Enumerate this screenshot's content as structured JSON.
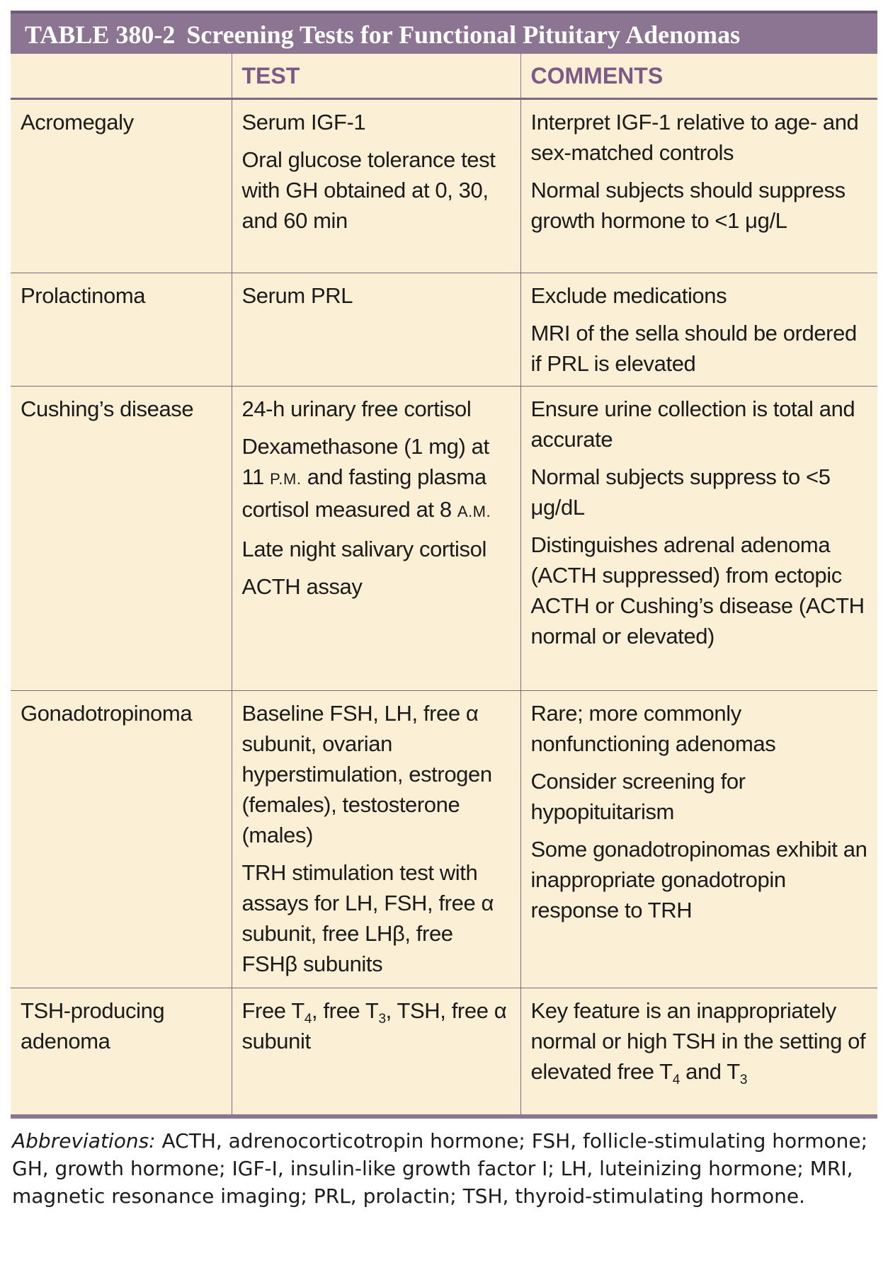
{
  "title": {
    "number": "TABLE 380-2",
    "text": "Screening Tests for Functional Pituitary Adenomas"
  },
  "headers": {
    "col1": "",
    "test": "TEST",
    "comments": "COMMENTS"
  },
  "rows": [
    {
      "condition": "Acromegaly",
      "tests": [
        "Serum IGF-1",
        "Oral glucose tolerance test with GH obtained at 0, 30, and 60 min"
      ],
      "comments": [
        "Interpret IGF-1 relative to age- and sex-matched controls",
        "Normal subjects should suppress growth hormone to <1 μg/L"
      ]
    },
    {
      "condition": "Prolactinoma",
      "tests": [
        "Serum PRL"
      ],
      "comments": [
        "Exclude medications",
        "MRI of the sella should be ordered if PRL is elevated"
      ]
    },
    {
      "condition": "Cushing’s disease",
      "tests": [
        "24-h urinary free cortisol",
        "Dexamethasone (1 mg) at 11 ",
        "P.M.",
        " and fasting plasma cortisol measured at 8 ",
        "A.M.",
        "Late night salivary cortisol",
        "ACTH assay"
      ],
      "comments": [
        "Ensure urine collection is total and accurate",
        "Normal subjects suppress to <5 μg/dL",
        "Distinguishes adrenal adenoma (ACTH suppressed) from ectopic ACTH or Cushing’s disease (ACTH normal or elevated)"
      ]
    },
    {
      "condition": "Gonadotropinoma",
      "tests": [
        "Baseline FSH, LH, free α subunit, ovarian hyperstimulation, estrogen (females), testosterone (males)",
        "TRH stimulation test with assays for LH, FSH, free α subunit, free LHβ, free FSHβ subunits"
      ],
      "comments": [
        "Rare; more commonly nonfunctioning adenomas",
        "Consider screening for hypopituitarism",
        "Some gonadotropinomas exhibit an inappropriate gonadotropin response to TRH"
      ]
    },
    {
      "condition": "TSH-producing adenoma",
      "tests": [
        "Free T",
        "4",
        ", free T",
        "3",
        ", TSH, free α subunit"
      ],
      "comments": [
        "Key feature is an inappropriately normal or high TSH in the setting of elevated free T",
        "4",
        " and T",
        "3"
      ]
    }
  ],
  "footnote": {
    "label": "Abbreviations:",
    "text": " ACTH, adrenocorticotropin hormone; FSH, follicle-stimulating hormone; GH, growth hormone; IGF-I, insulin-like growth factor I; LH, luteinizing hormone; MRI, magnetic resonance imaging; PRL, prolactin; TSH, thyroid-stimulating hormone."
  },
  "colors": {
    "title_bar": "#8c7592",
    "header_text": "#7d5a86",
    "cell_background": "#fbefd6"
  }
}
